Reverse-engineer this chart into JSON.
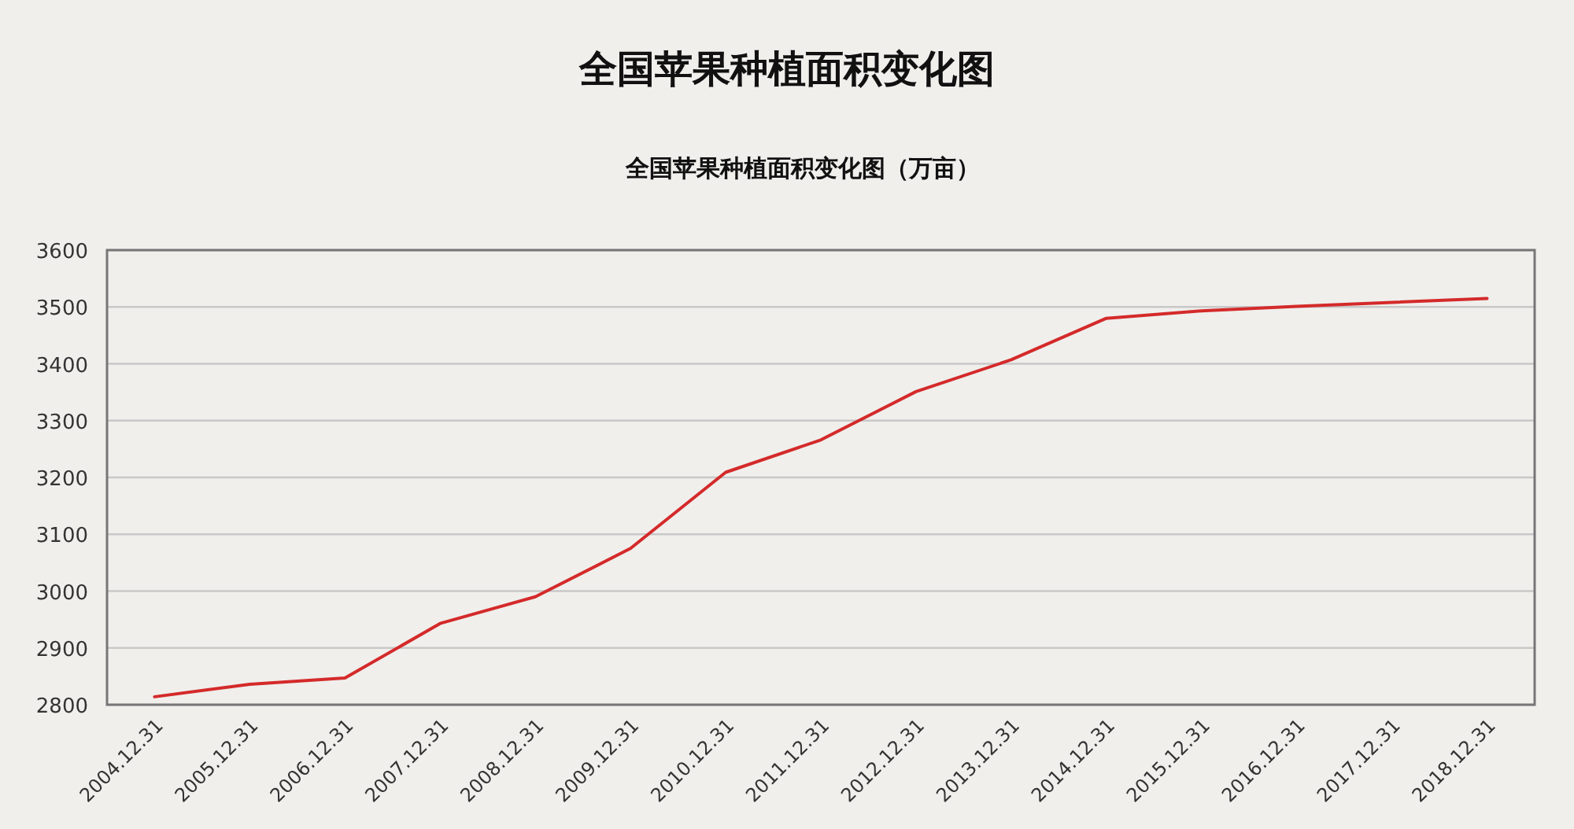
{
  "chart_data": {
    "type": "line",
    "title": "全国苹果种植面积变化图",
    "subtitle": "全国苹果种植面积变化图（万亩）",
    "categories": [
      "2004.12.31",
      "2005.12.31",
      "2006.12.31",
      "2007.12.31",
      "2008.12.31",
      "2009.12.31",
      "2010.12.31",
      "2011.12.31",
      "2012.12.31",
      "2013.12.31",
      "2014.12.31",
      "2015.12.31",
      "2016.12.31",
      "2017.12.31",
      "2018.12.31"
    ],
    "series": [
      {
        "color": "#d42a2a",
        "values": [
          2814,
          2836,
          2847,
          2943,
          2990,
          3075,
          3209,
          3266,
          3351,
          3407,
          3480,
          3493,
          3501,
          3508,
          3515
        ]
      }
    ],
    "ylim": [
      2800,
      3600
    ],
    "yticks": [
      2800,
      2900,
      3000,
      3100,
      3200,
      3300,
      3400,
      3500,
      3600
    ],
    "grid": "y",
    "marker": "none",
    "line_style": "solid"
  }
}
